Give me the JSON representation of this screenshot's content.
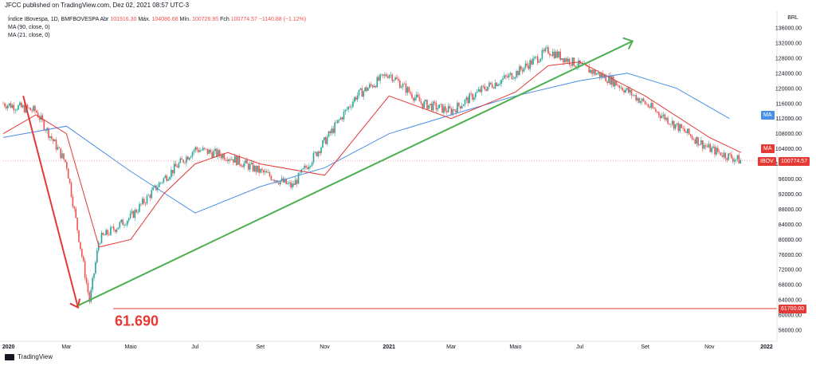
{
  "header": {
    "published": "JFCC published on TradingView.com, Dez 02, 2021 08:57 UTC-3",
    "symbol": "Índice IBovespa, 1D, BMFBOVESPA",
    "abr_label": "Abr",
    "abr_value": "101916.30",
    "max_label": "Máx.",
    "max_value": "104086.68",
    "min_label": "Mín.",
    "min_value": "100726.95",
    "fch_label": "Fch",
    "fch_value": "100774.57",
    "change": "−1140.88 (−1.12%)",
    "ma90": "MA (90, close, 0)",
    "ma21": "MA (21, close, 0)"
  },
  "axis": {
    "currency": "BRL",
    "y_ticks": [
      "136000.00",
      "132000.00",
      "128000.00",
      "124000.00",
      "120000.00",
      "116000.00",
      "112000.00",
      "108000.00",
      "104000.00",
      "100000.00",
      "96000.00",
      "92000.00",
      "88000.00",
      "84000.00",
      "80000.00",
      "76000.00",
      "72000.00",
      "68000.00",
      "64000.00",
      "60000.00",
      "56000.00"
    ],
    "x_ticks": [
      "2020",
      "Mar",
      "Maio",
      "Jul",
      "Set",
      "Nov",
      "2021",
      "Mar",
      "Maio",
      "Jul",
      "Set",
      "Nov",
      "2022"
    ]
  },
  "badges": {
    "ma_blue": "MA",
    "ma_red": "MA",
    "ibov": "IBOV",
    "ibov_value": "100774.57",
    "support_value": "61700.00"
  },
  "annotation": {
    "low_label": "61.690"
  },
  "footer": {
    "brand": "TradingView"
  },
  "colors": {
    "up": "#26a69a",
    "down": "#ef5350",
    "ma90": "#4a8fe7",
    "ma21": "#e53935",
    "trend": "#4caf50",
    "crash": "#e53935",
    "support": "#e53935"
  },
  "chart_data": {
    "type": "line",
    "title": "",
    "series": [
      {
        "name": "Índice IBovespa",
        "x": [
          "2020-01",
          "2020-02",
          "2020-03",
          "2020-03-23",
          "2020-04",
          "2020-05",
          "2020-06",
          "2020-07",
          "2020-08",
          "2020-09",
          "2020-10",
          "2020-11",
          "2020-12",
          "2021-01",
          "2021-02",
          "2021-03",
          "2021-04",
          "2021-05",
          "2021-06",
          "2021-07",
          "2021-08",
          "2021-09",
          "2021-10",
          "2021-11",
          "2021-12-01"
        ],
        "values": [
          116000,
          114000,
          100000,
          63500,
          80000,
          86000,
          96000,
          104000,
          102000,
          98000,
          94000,
          106000,
          118000,
          124000,
          116000,
          114000,
          120000,
          124000,
          130000,
          126000,
          122000,
          116000,
          110000,
          104000,
          100775
        ]
      },
      {
        "name": "MA (90, close, 0)",
        "x": [
          "2020-01",
          "2020-03",
          "2020-05",
          "2020-07",
          "2020-09",
          "2020-11",
          "2021-01",
          "2021-03",
          "2021-05",
          "2021-07",
          "2021-08-15",
          "2021-10",
          "2021-11-20"
        ],
        "values": [
          107000,
          110000,
          98000,
          87000,
          94000,
          99000,
          108000,
          113000,
          118000,
          122000,
          124000,
          120000,
          112000
        ]
      },
      {
        "name": "MA (21, close, 0)",
        "x": [
          "2020-01",
          "2020-02",
          "2020-03",
          "2020-04",
          "2020-05",
          "2020-06",
          "2020-07",
          "2020-08",
          "2020-09",
          "2020-11",
          "2021-01",
          "2021-03",
          "2021-05",
          "2021-06",
          "2021-07",
          "2021-09",
          "2021-11",
          "2021-12-01"
        ],
        "values": [
          108000,
          113000,
          108000,
          78000,
          80000,
          92000,
          100000,
          103000,
          100000,
          97000,
          118000,
          112000,
          119000,
          126000,
          127000,
          118000,
          107000,
          103000
        ]
      }
    ],
    "annotations": [
      {
        "type": "line",
        "color": "#e53935",
        "from": [
          "2020-01-20",
          118000
        ],
        "to": [
          "2020-03-12",
          62000
        ]
      },
      {
        "type": "line",
        "color": "#4caf50",
        "from": [
          "2020-03-12",
          62500
        ],
        "to": [
          "2021-08-20",
          132500
        ]
      },
      {
        "type": "hline",
        "color": "#e53935",
        "value": 61700
      },
      {
        "type": "text",
        "value": "61.690"
      }
    ],
    "ylabel": "BRL",
    "ylim": [
      54000,
      138000
    ],
    "grid": false,
    "legend": "top-left"
  }
}
